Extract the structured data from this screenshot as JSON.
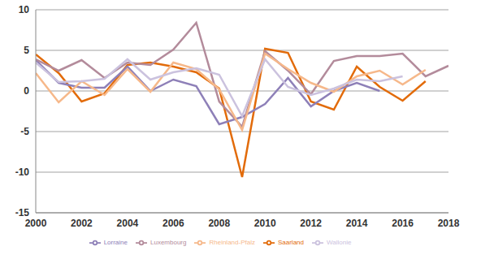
{
  "chart_data": {
    "type": "line",
    "x": [
      2000,
      2001,
      2002,
      2003,
      2004,
      2005,
      2006,
      2007,
      2008,
      2009,
      2010,
      2011,
      2012,
      2013,
      2014,
      2015,
      2016,
      2017,
      2018
    ],
    "series": [
      {
        "name": "Saarland",
        "color": "#e26b0a",
        "values": [
          4.5,
          2.2,
          -1.3,
          -0.3,
          3.2,
          3.5,
          3.0,
          2.3,
          0.3,
          -10.6,
          5.2,
          4.7,
          -1.3,
          -2.3,
          3.0,
          0.5,
          -1.2,
          1.2,
          null
        ]
      },
      {
        "name": "Lorraine",
        "color": "#8e80b8",
        "values": [
          3.8,
          1.0,
          0.4,
          0.4,
          3.0,
          0.0,
          1.4,
          0.6,
          -4.1,
          -3.2,
          -1.6,
          1.6,
          -1.9,
          0.0,
          1.0,
          0.0,
          null,
          null,
          null
        ]
      },
      {
        "name": "Luxembourg",
        "color": "#b38b9b",
        "values": [
          3.9,
          2.5,
          3.8,
          1.6,
          3.5,
          3.2,
          5.1,
          8.4,
          -1.3,
          -4.4,
          4.9,
          2.5,
          -0.4,
          3.7,
          4.3,
          4.3,
          4.6,
          1.8,
          3.1
        ]
      },
      {
        "name": "Rheinland-Pfalz",
        "color": "#f6b88a",
        "values": [
          2.2,
          -1.4,
          1.2,
          -0.5,
          2.7,
          -0.1,
          3.5,
          2.7,
          0.2,
          -4.8,
          4.6,
          2.7,
          1.0,
          -0.1,
          1.8,
          2.5,
          0.8,
          2.6,
          null
        ]
      },
      {
        "name": "Wallonie",
        "color": "#cbc2de",
        "values": [
          3.5,
          1.1,
          1.2,
          1.5,
          3.9,
          1.4,
          2.3,
          2.8,
          2.0,
          -3.1,
          3.9,
          0.5,
          -0.5,
          0.3,
          1.4,
          1.2,
          1.8,
          null,
          null
        ]
      }
    ],
    "xlim": [
      2000,
      2018
    ],
    "xticks": [
      2000,
      2002,
      2004,
      2006,
      2008,
      2010,
      2012,
      2014,
      2016,
      2018
    ],
    "ylim": [
      -15,
      10
    ],
    "yticks": [
      -15,
      -10,
      -5,
      0,
      5,
      10
    ],
    "grid": true,
    "legend": "bottom"
  }
}
